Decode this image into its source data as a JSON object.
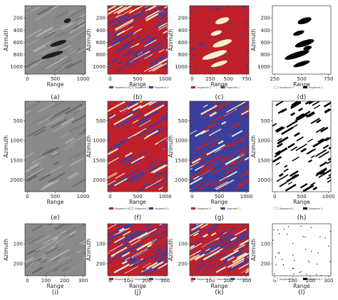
{
  "colors": {
    "segment_0": "#c0202a",
    "segment_1": "#f4f1c8",
    "segment_2": "#3a3f9e",
    "binary_fg": "#000000",
    "binary_bg": "#ffffff",
    "sar_gray": "#8a8a8a"
  },
  "rows": [
    {
      "ylabel": "Azimuth",
      "xlabel": "Range",
      "panels": [
        {
          "caption": "(a)",
          "kind": "sar",
          "yticks": [
            "200",
            "400",
            "600",
            "800",
            "1000"
          ],
          "xticks": [
            "0",
            "500",
            "1000"
          ],
          "legend": []
        },
        {
          "caption": "(b)",
          "kind": "tri",
          "yticks": [
            "200",
            "400",
            "600",
            "800",
            "1000"
          ],
          "xticks": [
            "0",
            "500",
            "1000"
          ],
          "legend": [
            "Segment 0",
            "Segment 1",
            "Segment 2"
          ]
        },
        {
          "caption": "(c)",
          "kind": "red",
          "yticks": [
            "200",
            "400",
            "600",
            "800",
            "1000"
          ],
          "xticks": [
            "0",
            "250",
            "500",
            "750"
          ],
          "legend": [
            "Segment 0",
            "Segment 1"
          ]
        },
        {
          "caption": "(d)",
          "kind": "bin",
          "yticks": [
            "200",
            "400",
            "600",
            "800",
            "1000"
          ],
          "xticks": [
            "250",
            "500",
            "750"
          ],
          "legend": [
            "Segment 0",
            "Segment 1"
          ]
        }
      ]
    },
    {
      "ylabel": "Azimuth",
      "xlabel": "Range",
      "panels": [
        {
          "caption": "(e)",
          "kind": "sar",
          "yticks": [
            "500",
            "1000",
            "1500",
            "2000"
          ],
          "xticks": [
            "0",
            "500",
            "1000"
          ],
          "legend": []
        },
        {
          "caption": "(f)",
          "kind": "tri",
          "yticks": [
            "500",
            "1000",
            "1500",
            "2000"
          ],
          "xticks": [
            "0",
            "500",
            "1000"
          ],
          "legend": [
            "Segment 0",
            "Segment 1",
            "Segment 2"
          ]
        },
        {
          "caption": "(g)",
          "kind": "blue",
          "yticks": [
            "500",
            "1000",
            "1500",
            "2000"
          ],
          "xticks": [
            "0",
            "500",
            "1000"
          ],
          "legend": [
            "Segment 0",
            "Segment 1"
          ]
        },
        {
          "caption": "(h)",
          "kind": "bin",
          "yticks": [
            "500",
            "1000",
            "1500",
            "2000"
          ],
          "xticks": [
            "0",
            "500",
            "1000"
          ],
          "legend": [
            "Segment 0",
            "Segment 1"
          ]
        }
      ]
    },
    {
      "ylabel": "Azimuth",
      "xlabel": "Range",
      "panels": [
        {
          "caption": "(i)",
          "kind": "sar",
          "yticks": [
            "100",
            "200"
          ],
          "xticks": [
            "0",
            "100",
            "200",
            "300"
          ],
          "legend": []
        },
        {
          "caption": "(j)",
          "kind": "tri",
          "yticks": [
            "100",
            "200"
          ],
          "xticks": [
            "0",
            "100",
            "200",
            "300"
          ],
          "legend": [
            "Segment 0",
            "Segment 1",
            "Segment 2"
          ]
        },
        {
          "caption": "(k)",
          "kind": "tri",
          "yticks": [
            "100",
            "200"
          ],
          "xticks": [
            "0",
            "100",
            "200",
            "300"
          ],
          "legend": [
            "Segment 0",
            "Segment 1",
            "Segment 2"
          ]
        },
        {
          "caption": "(l)",
          "kind": "sparse",
          "yticks": [
            "100",
            "200"
          ],
          "xticks": [
            "0",
            "100",
            "200",
            "300"
          ],
          "legend": [
            "Segment 0",
            "Segment 1"
          ]
        }
      ]
    }
  ]
}
